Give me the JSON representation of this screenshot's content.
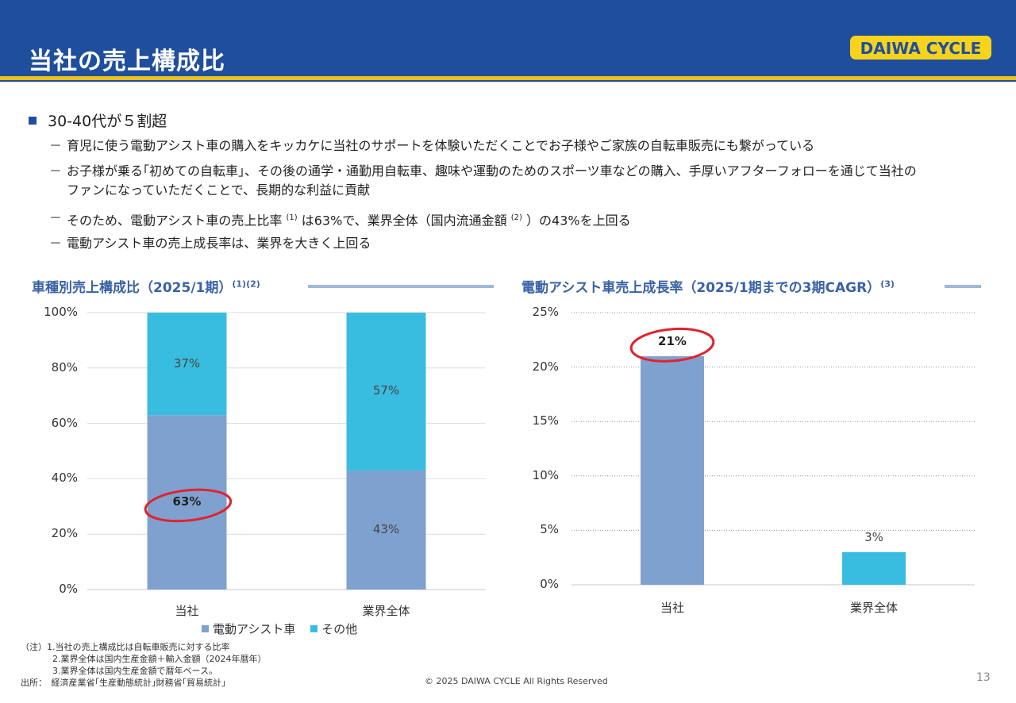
{
  "header": {
    "title": "当社の売上構成比",
    "logo_text": "DAIWA CYCLE",
    "colors": {
      "band": "#1f4f9c",
      "stripe": "#e8c21a"
    }
  },
  "bullets": {
    "main": "30-40代が５割超",
    "sub1": "育児に使う電動アシスト車の購入をキッカケに当社のサポートを体験いただくことでお子様やご家族の自転車販売にも繋がっている",
    "sub2_line1": "お子様が乗る｢初めての自転車｣、その後の通学・通勤用自転車、趣味や運動のためのスポーツ車などの購入、手厚いアフターフォローを通じて当社の",
    "sub2_line2": "ファンになっていただくことで、長期的な利益に貢献",
    "sub3_a": "そのため、電動アシスト車の売上比率",
    "sub3_sup1": "(1)",
    "sub3_b": "は63%で、業界全体（国内流通金額",
    "sub3_sup2": "(2)",
    "sub3_c": "）の43%を上回る",
    "sub4": "電動アシスト車の売上成長率は、業界を大きく上回る",
    "dash": "－"
  },
  "chart_data": [
    {
      "type": "bar",
      "stacked": true,
      "title": "車種別売上構成比（2025/1期）",
      "title_sup": "(1)(2)",
      "categories": [
        "当社",
        "業界全体"
      ],
      "series": [
        {
          "name": "電動アシスト車",
          "values": [
            63,
            43
          ],
          "color": "#7fa1cf",
          "labels": [
            "63%",
            "43%"
          ]
        },
        {
          "name": "その他",
          "values": [
            37,
            57
          ],
          "color": "#38bde0",
          "labels": [
            "37%",
            "57%"
          ]
        }
      ],
      "ylim": [
        0,
        100
      ],
      "yticks": [
        "0%",
        "20%",
        "40%",
        "60%",
        "80%",
        "100%"
      ],
      "grid": true,
      "legend": "bottom",
      "highlight": "63%"
    },
    {
      "type": "bar",
      "title": "電動アシスト車売上成長率（2025/1期までの3期CAGR）",
      "title_sup": "(3)",
      "categories": [
        "当社",
        "業界全体"
      ],
      "values": [
        21,
        3
      ],
      "colors": [
        "#7fa1cf",
        "#38bde0"
      ],
      "labels": [
        "21%",
        "3%"
      ],
      "ylim": [
        0,
        25
      ],
      "yticks": [
        "0%",
        "5%",
        "10%",
        "15%",
        "20%",
        "25%"
      ],
      "grid": "dotted",
      "highlight": "21%"
    }
  ],
  "notes": {
    "line1": "（注）1.当社の売上構成比は自転車販売に対する比率",
    "line2": "2.業界全体は国内生産金額＋輸入金額（2024年暦年）",
    "line3": "3.業界全体は国内生産金額で暦年ベース。",
    "line4": "出所：　経済産業省｢生産動態統計｣財務省｢貿易統計｣"
  },
  "footer": {
    "copyright": "© 2025 DAIWA CYCLE All Rights Reserved",
    "page_number": "13"
  }
}
